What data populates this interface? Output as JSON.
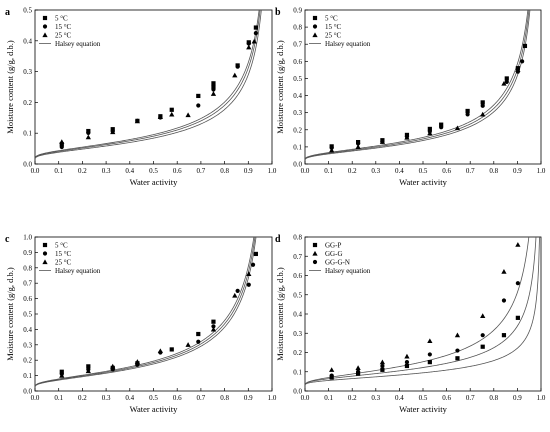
{
  "chart_data": [
    {
      "type": "scatter",
      "panel_label": "a",
      "xlabel": "Water activity",
      "ylabel": "Moisture content (g/g, d.b.)",
      "xlim": [
        0.0,
        1.0
      ],
      "ylim": [
        0.0,
        0.5
      ],
      "xticks": [
        "0.0",
        "0.1",
        "0.2",
        "0.3",
        "0.4",
        "0.5",
        "0.6",
        "0.7",
        "0.8",
        "0.9",
        "1.0"
      ],
      "yticks": [
        "0.0",
        "0.1",
        "0.2",
        "0.3",
        "0.4",
        "0.5"
      ],
      "legend": "top-left",
      "series": [
        {
          "name": "5 °C",
          "marker": "square",
          "x": [
            0.113,
            0.225,
            0.328,
            0.432,
            0.529,
            0.577,
            0.689,
            0.753,
            0.753,
            0.855,
            0.902,
            0.932
          ],
          "y": [
            0.064,
            0.107,
            0.113,
            0.14,
            0.155,
            0.176,
            0.221,
            0.262,
            0.25,
            0.32,
            0.395,
            0.443
          ]
        },
        {
          "name": "15 °C",
          "marker": "circle",
          "x": [
            0.113,
            0.225,
            0.328,
            0.432,
            0.529,
            0.689,
            0.753,
            0.855,
            0.902,
            0.932
          ],
          "y": [
            0.055,
            0.101,
            0.106,
            0.14,
            0.151,
            0.19,
            0.242,
            0.316,
            0.391,
            0.425
          ]
        },
        {
          "name": "25 °C",
          "marker": "triangle",
          "x": [
            0.113,
            0.225,
            0.328,
            0.432,
            0.529,
            0.577,
            0.646,
            0.753,
            0.843,
            0.902,
            0.925
          ],
          "y": [
            0.072,
            0.087,
            0.104,
            0.139,
            0.153,
            0.161,
            0.159,
            0.228,
            0.288,
            0.379,
            0.398
          ]
        },
        {
          "name": "Halsey equation",
          "marker": "line",
          "curves": [
            {
              "A": 0.075,
              "n": 1.52
            },
            {
              "A": 0.071,
              "n": 1.52
            },
            {
              "A": 0.066,
              "n": 1.52
            }
          ]
        }
      ]
    },
    {
      "type": "scatter",
      "panel_label": "b",
      "xlabel": "Water activity",
      "ylabel": "Moisture content (g/g, d.b.)",
      "xlim": [
        0.0,
        1.0
      ],
      "ylim": [
        0.0,
        0.9
      ],
      "xticks": [
        "0.0",
        "0.1",
        "0.2",
        "0.3",
        "0.4",
        "0.5",
        "0.6",
        "0.7",
        "0.8",
        "0.9",
        "1.0"
      ],
      "yticks": [
        "0.0",
        "0.1",
        "0.2",
        "0.3",
        "0.4",
        "0.5",
        "0.6",
        "0.7",
        "0.8",
        "0.9"
      ],
      "legend": "top-left",
      "series": [
        {
          "name": "5 °C",
          "marker": "square",
          "x": [
            0.113,
            0.225,
            0.328,
            0.432,
            0.529,
            0.577,
            0.689,
            0.753,
            0.855,
            0.902,
            0.932
          ],
          "y": [
            0.103,
            0.128,
            0.139,
            0.17,
            0.205,
            0.23,
            0.31,
            0.36,
            0.5,
            0.56,
            0.69
          ]
        },
        {
          "name": "15 °C",
          "marker": "circle",
          "x": [
            0.113,
            0.225,
            0.328,
            0.432,
            0.529,
            0.577,
            0.689,
            0.753,
            0.855,
            0.902,
            0.92
          ],
          "y": [
            0.095,
            0.12,
            0.13,
            0.16,
            0.19,
            0.215,
            0.29,
            0.34,
            0.48,
            0.54,
            0.6
          ]
        },
        {
          "name": "25 °C",
          "marker": "triangle",
          "x": [
            0.113,
            0.225,
            0.328,
            0.432,
            0.529,
            0.646,
            0.753,
            0.843,
            0.902
          ],
          "y": [
            0.08,
            0.1,
            0.13,
            0.155,
            0.18,
            0.21,
            0.29,
            0.47,
            0.55
          ]
        },
        {
          "name": "Halsey equation",
          "marker": "line",
          "curves": [
            {
              "A": 0.12,
              "n": 1.42
            },
            {
              "A": 0.113,
              "n": 1.42
            },
            {
              "A": 0.106,
              "n": 1.42
            }
          ]
        }
      ]
    },
    {
      "type": "scatter",
      "panel_label": "c",
      "xlabel": "Water activity",
      "ylabel": "Moisture content (g/g, d.b.)",
      "xlim": [
        0.0,
        1.0
      ],
      "ylim": [
        0.0,
        1.0
      ],
      "xticks": [
        "0.0",
        "0.1",
        "0.2",
        "0.3",
        "0.4",
        "0.5",
        "0.6",
        "0.7",
        "0.8",
        "0.9",
        "1.0"
      ],
      "yticks": [
        "0.0",
        "0.1",
        "0.2",
        "0.3",
        "0.4",
        "0.5",
        "0.6",
        "0.7",
        "0.8",
        "0.9",
        "1.0"
      ],
      "legend": "top-left",
      "series": [
        {
          "name": "5 °C",
          "marker": "square",
          "x": [
            0.113,
            0.225,
            0.328,
            0.432,
            0.577,
            0.689,
            0.753,
            0.932
          ],
          "y": [
            0.125,
            0.16,
            0.15,
            0.18,
            0.27,
            0.37,
            0.45,
            0.89
          ]
        },
        {
          "name": "15 °C",
          "marker": "circle",
          "x": [
            0.113,
            0.225,
            0.328,
            0.432,
            0.529,
            0.689,
            0.753,
            0.855,
            0.902,
            0.92
          ],
          "y": [
            0.11,
            0.14,
            0.14,
            0.17,
            0.25,
            0.32,
            0.42,
            0.65,
            0.69,
            0.82
          ]
        },
        {
          "name": "25 °C",
          "marker": "triangle",
          "x": [
            0.113,
            0.225,
            0.328,
            0.432,
            0.529,
            0.646,
            0.753,
            0.843,
            0.902
          ],
          "y": [
            0.1,
            0.13,
            0.16,
            0.19,
            0.26,
            0.3,
            0.4,
            0.62,
            0.76
          ]
        },
        {
          "name": "Halsey equation",
          "marker": "line",
          "curves": [
            {
              "A": 0.147,
              "n": 1.32
            },
            {
              "A": 0.14,
              "n": 1.32
            },
            {
              "A": 0.133,
              "n": 1.32
            }
          ]
        }
      ]
    },
    {
      "type": "scatter",
      "panel_label": "d",
      "xlabel": "Water activity",
      "ylabel": "Moisture content (g/g, d.b.)",
      "xlim": [
        0.0,
        1.0
      ],
      "ylim": [
        0.0,
        0.8
      ],
      "xticks": [
        "0.0",
        "0.1",
        "0.2",
        "0.3",
        "0.4",
        "0.5",
        "0.6",
        "0.7",
        "0.8",
        "0.9",
        "1.0"
      ],
      "yticks": [
        "0.0",
        "0.1",
        "0.2",
        "0.3",
        "0.4",
        "0.5",
        "0.6",
        "0.7",
        "0.8"
      ],
      "legend": "top-left",
      "series": [
        {
          "name": "GG-P",
          "marker": "square",
          "x": [
            0.113,
            0.225,
            0.328,
            0.432,
            0.529,
            0.646,
            0.753,
            0.843,
            0.902
          ],
          "y": [
            0.07,
            0.09,
            0.11,
            0.13,
            0.15,
            0.17,
            0.23,
            0.29,
            0.38
          ]
        },
        {
          "name": "GG-G",
          "marker": "triangle",
          "x": [
            0.113,
            0.225,
            0.328,
            0.432,
            0.529,
            0.646,
            0.753,
            0.843,
            0.902
          ],
          "y": [
            0.11,
            0.12,
            0.15,
            0.18,
            0.26,
            0.29,
            0.39,
            0.62,
            0.76
          ]
        },
        {
          "name": "GG-G-N",
          "marker": "circle",
          "x": [
            0.113,
            0.225,
            0.328,
            0.432,
            0.529,
            0.646,
            0.753,
            0.843,
            0.902
          ],
          "y": [
            0.08,
            0.1,
            0.13,
            0.15,
            0.19,
            0.21,
            0.29,
            0.47,
            0.56
          ]
        },
        {
          "name": "Halsey equation",
          "marker": "line",
          "curves": [
            {
              "A": 0.08,
              "n": 2.2
            },
            {
              "A": 0.12,
              "n": 1.55
            },
            {
              "A": 0.1,
              "n": 1.85
            }
          ]
        }
      ]
    }
  ]
}
